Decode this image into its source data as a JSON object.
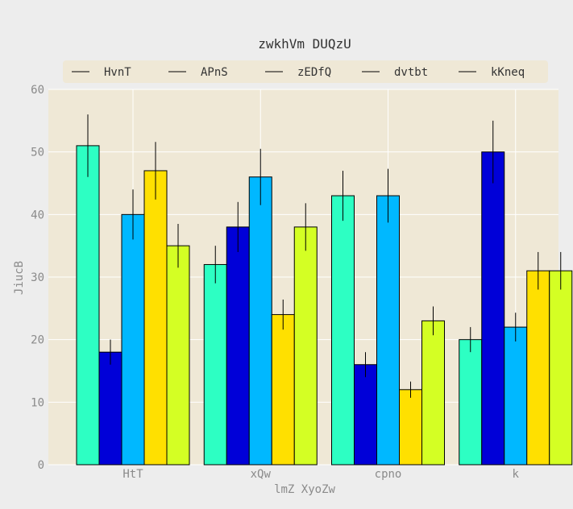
{
  "chart_data": {
    "type": "bar",
    "title": "zwkhVm DUQzU",
    "xlabel": "lmZ  XyoZw",
    "ylabel": "JiucB",
    "ylim": [
      0,
      60
    ],
    "yticks": [
      0,
      10,
      20,
      30,
      40,
      50,
      60
    ],
    "categories": [
      "HtT",
      "xQw",
      "cpno",
      "k"
    ],
    "legend_position": "top",
    "grid": true,
    "background_color": "#efe8d6",
    "series": [
      {
        "name": "HvnT",
        "color": "#2dffc3",
        "values": [
          51,
          32,
          43,
          20
        ],
        "errors": [
          5,
          3,
          4,
          2
        ]
      },
      {
        "name": "APnS",
        "color": "#0000d8",
        "values": [
          18,
          38,
          16,
          50
        ],
        "errors": [
          2,
          4,
          2,
          5
        ]
      },
      {
        "name": "zEDfQ",
        "color": "#00b8ff",
        "values": [
          40,
          46,
          43,
          22
        ],
        "errors": [
          4,
          4.5,
          4.3,
          2.3
        ]
      },
      {
        "name": "dvtbt",
        "color": "#ffe000",
        "values": [
          47,
          24,
          12,
          31
        ],
        "errors": [
          4.6,
          2.4,
          1.3,
          3
        ]
      },
      {
        "name": "kKneq",
        "color": "#d4ff24",
        "values": [
          35,
          38,
          23,
          31
        ],
        "errors": [
          3.5,
          3.8,
          2.3,
          3
        ]
      }
    ]
  }
}
